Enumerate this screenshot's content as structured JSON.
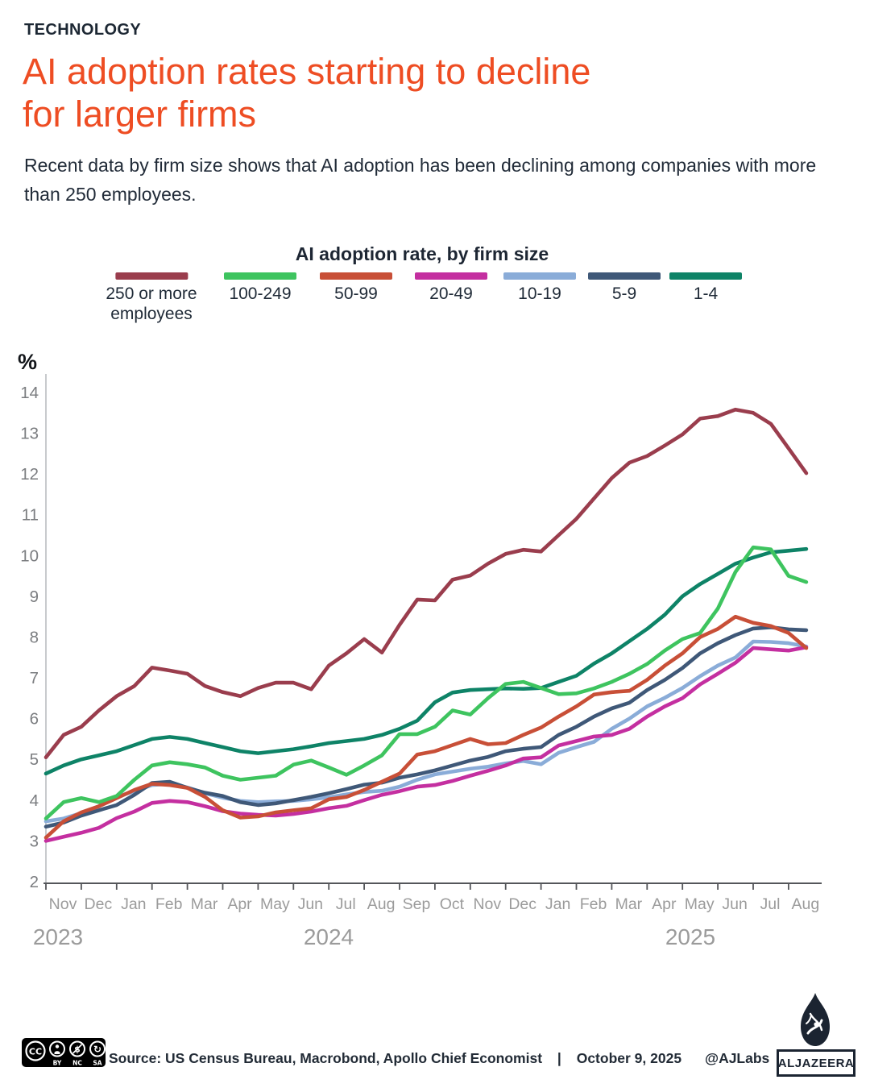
{
  "kicker": "TECHNOLOGY",
  "title_lines": [
    "AI adoption rates starting to decline",
    "for larger firms"
  ],
  "subtitle": "Recent data by firm size shows that AI adoption has been declining among companies with more than 250 employees.",
  "chart_data": {
    "type": "line",
    "title": "AI adoption rate, by firm size",
    "ylabel": "%",
    "ylim": [
      2,
      14
    ],
    "y_ticks": [
      2,
      3,
      4,
      5,
      6,
      7,
      8,
      9,
      10,
      11,
      12,
      13,
      14
    ],
    "x_tick_labels": [
      "Nov",
      "Dec",
      "Jan",
      "Feb",
      "Mar",
      "Apr",
      "May",
      "Jun",
      "Jul",
      "Aug",
      "Sep",
      "Oct",
      "Nov",
      "Dec",
      "Jan",
      "Feb",
      "Mar",
      "Apr",
      "May",
      "Jun",
      "Jul",
      "Aug"
    ],
    "year_labels": [
      "2023",
      "2024",
      "2025"
    ],
    "points_per_month": 2,
    "grid": false,
    "legend_position": "top",
    "series": [
      {
        "label": "250 or more\nemployees",
        "color": "#9A3D4D",
        "values": [
          5.05,
          5.6,
          5.8,
          6.2,
          6.55,
          6.8,
          7.25,
          7.18,
          7.1,
          6.8,
          6.65,
          6.55,
          6.75,
          6.88,
          6.88,
          6.72,
          7.3,
          7.6,
          7.95,
          7.62,
          8.3,
          8.92,
          8.9,
          9.41,
          9.51,
          9.8,
          10.04,
          10.14,
          10.1,
          10.5,
          10.9,
          11.4,
          11.9,
          12.28,
          12.44,
          12.7,
          12.97,
          13.36,
          13.42,
          13.58,
          13.5,
          13.23,
          12.63,
          12.02
        ]
      },
      {
        "label": "100-249",
        "color": "#3EC45F",
        "values": [
          3.55,
          3.95,
          4.05,
          3.95,
          4.1,
          4.5,
          4.85,
          4.93,
          4.88,
          4.8,
          4.6,
          4.5,
          4.55,
          4.6,
          4.87,
          4.97,
          4.8,
          4.62,
          4.85,
          5.1,
          5.62,
          5.62,
          5.8,
          6.2,
          6.1,
          6.5,
          6.85,
          6.9,
          6.75,
          6.6,
          6.62,
          6.74,
          6.9,
          7.1,
          7.34,
          7.67,
          7.95,
          8.1,
          8.7,
          9.6,
          10.2,
          10.15,
          9.5,
          9.35
        ]
      },
      {
        "label": "50-99",
        "color": "#C84F37",
        "values": [
          3.08,
          3.48,
          3.7,
          3.85,
          4.05,
          4.25,
          4.4,
          4.37,
          4.3,
          4.08,
          3.75,
          3.57,
          3.6,
          3.7,
          3.75,
          3.8,
          4.02,
          4.08,
          4.25,
          4.45,
          4.65,
          5.12,
          5.2,
          5.35,
          5.5,
          5.37,
          5.4,
          5.6,
          5.78,
          6.05,
          6.3,
          6.59,
          6.65,
          6.68,
          6.95,
          7.3,
          7.6,
          8.0,
          8.2,
          8.5,
          8.35,
          8.27,
          8.1,
          7.73
        ]
      },
      {
        "label": "20-49",
        "color": "#C42FA0",
        "values": [
          3.0,
          3.1,
          3.2,
          3.32,
          3.56,
          3.72,
          3.93,
          3.98,
          3.95,
          3.85,
          3.73,
          3.67,
          3.64,
          3.62,
          3.66,
          3.72,
          3.8,
          3.86,
          4.0,
          4.13,
          4.22,
          4.33,
          4.37,
          4.47,
          4.6,
          4.72,
          4.85,
          5.02,
          5.05,
          5.34,
          5.45,
          5.56,
          5.6,
          5.75,
          6.05,
          6.3,
          6.5,
          6.84,
          7.1,
          7.37,
          7.73,
          7.7,
          7.67,
          7.75
        ]
      },
      {
        "label": "10-19",
        "color": "#8AACD8",
        "values": [
          3.48,
          3.55,
          3.68,
          3.85,
          4.08,
          4.22,
          4.37,
          4.4,
          4.31,
          4.17,
          4.06,
          3.98,
          3.95,
          3.97,
          3.98,
          4.02,
          4.07,
          4.14,
          4.2,
          4.23,
          4.33,
          4.5,
          4.63,
          4.7,
          4.77,
          4.82,
          4.9,
          4.96,
          4.88,
          5.16,
          5.3,
          5.43,
          5.75,
          6.0,
          6.3,
          6.51,
          6.75,
          7.04,
          7.3,
          7.5,
          7.89,
          7.88,
          7.85,
          7.77
        ]
      },
      {
        "label": "5-9",
        "color": "#3F5878",
        "values": [
          3.35,
          3.45,
          3.62,
          3.75,
          3.88,
          4.13,
          4.42,
          4.45,
          4.3,
          4.18,
          4.1,
          3.95,
          3.88,
          3.92,
          4.0,
          4.08,
          4.17,
          4.27,
          4.38,
          4.43,
          4.55,
          4.63,
          4.73,
          4.85,
          4.97,
          5.06,
          5.2,
          5.26,
          5.3,
          5.6,
          5.8,
          6.05,
          6.25,
          6.39,
          6.7,
          6.95,
          7.24,
          7.6,
          7.85,
          8.05,
          8.21,
          8.24,
          8.19,
          8.17
        ]
      },
      {
        "label": "1-4",
        "color": "#0E8367",
        "values": [
          4.65,
          4.85,
          5.0,
          5.1,
          5.2,
          5.35,
          5.5,
          5.55,
          5.5,
          5.4,
          5.3,
          5.2,
          5.15,
          5.2,
          5.25,
          5.32,
          5.4,
          5.45,
          5.5,
          5.6,
          5.75,
          5.95,
          6.4,
          6.64,
          6.7,
          6.72,
          6.74,
          6.73,
          6.75,
          6.9,
          7.05,
          7.35,
          7.6,
          7.9,
          8.2,
          8.55,
          9.0,
          9.3,
          9.55,
          9.8,
          9.95,
          10.08,
          10.12,
          10.16
        ]
      }
    ]
  },
  "footer": {
    "source_label": "Source:",
    "source_text": "US Census Bureau, Macrobond, Apollo Chief Economist",
    "divider": "|",
    "date": "October 9, 2025",
    "credit": "@AJLabs",
    "logo_text": "ALJAZEERA",
    "cc_label": "CC",
    "cc_terms": [
      "BY",
      "NC",
      "SA"
    ]
  }
}
